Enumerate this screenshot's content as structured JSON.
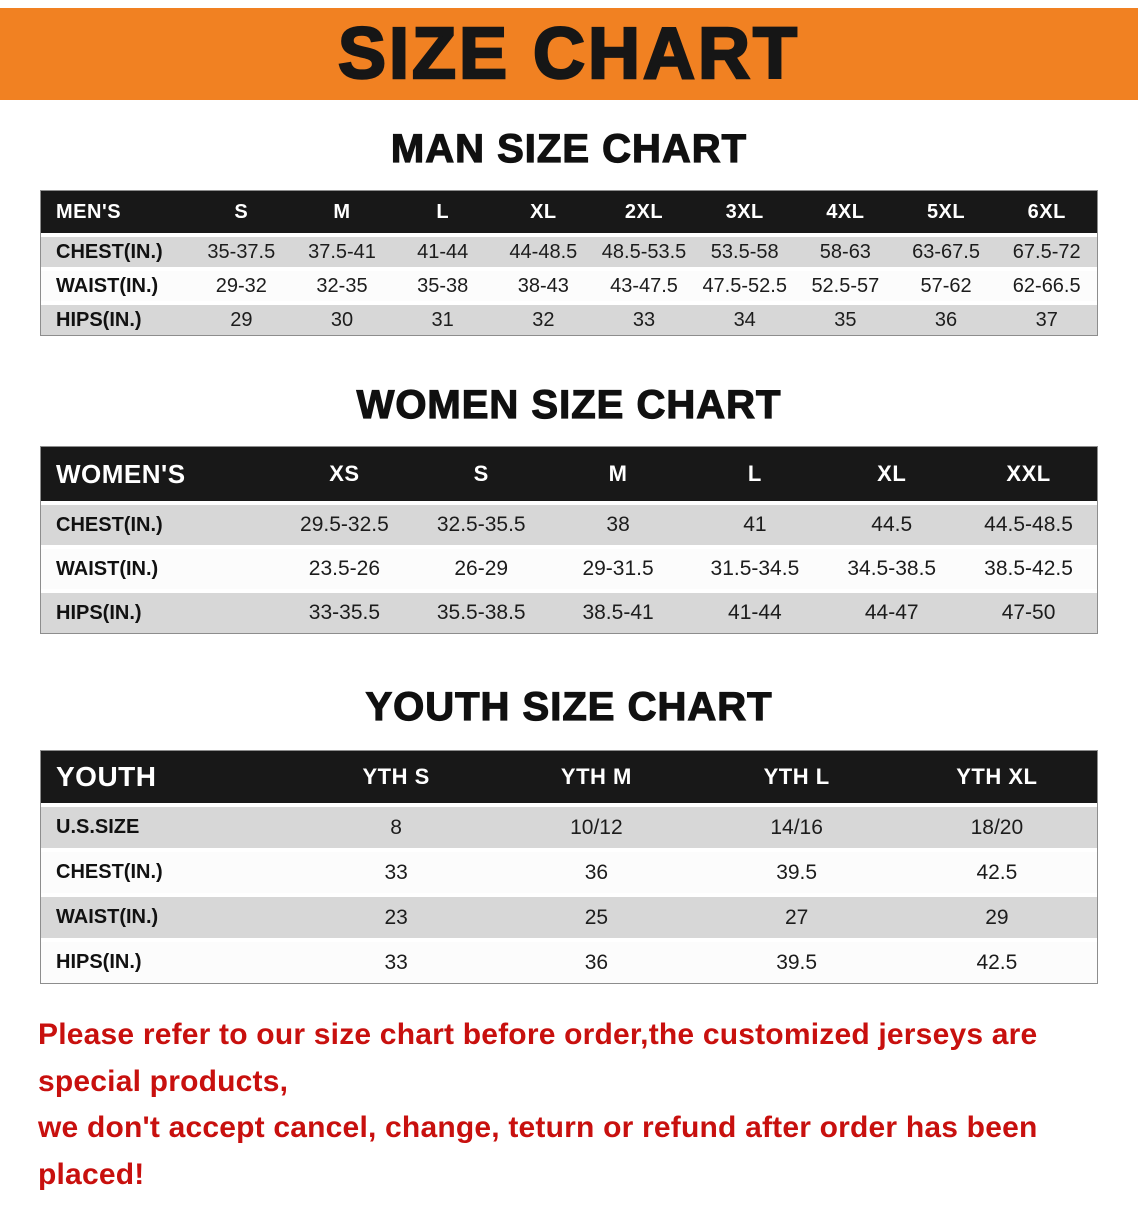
{
  "banner": {
    "title": "SIZE CHART"
  },
  "colors": {
    "banner-bg": "#f18122",
    "header-bg": "#181818",
    "row-alt": "#d7d7d7",
    "note-red": "#c8100e"
  },
  "sections": [
    {
      "id": "men",
      "heading": "MAN SIZE CHART",
      "header": [
        "MEN'S",
        "S",
        "M",
        "L",
        "XL",
        "2XL",
        "3XL",
        "4XL",
        "5XL",
        "6XL"
      ],
      "rows": [
        {
          "label": "CHEST(IN.)",
          "values": [
            "35-37.5",
            "37.5-41",
            "41-44",
            "44-48.5",
            "48.5-53.5",
            "53.5-58",
            "58-63",
            "63-67.5",
            "67.5-72"
          ]
        },
        {
          "label": "WAIST(IN.)",
          "values": [
            "29-32",
            "32-35",
            "35-38",
            "38-43",
            "43-47.5",
            "47.5-52.5",
            "52.5-57",
            "57-62",
            "62-66.5"
          ]
        },
        {
          "label": "HIPS(IN.)",
          "values": [
            "29",
            "30",
            "31",
            "32",
            "33",
            "34",
            "35",
            "36",
            "37"
          ]
        }
      ]
    },
    {
      "id": "women",
      "heading": "WOMEN SIZE CHART",
      "header": [
        "WOMEN'S",
        "XS",
        "S",
        "M",
        "L",
        "XL",
        "XXL"
      ],
      "rows": [
        {
          "label": "CHEST(IN.)",
          "values": [
            "29.5-32.5",
            "32.5-35.5",
            "38",
            "41",
            "44.5",
            "44.5-48.5"
          ]
        },
        {
          "label": "WAIST(IN.)",
          "values": [
            "23.5-26",
            "26-29",
            "29-31.5",
            "31.5-34.5",
            "34.5-38.5",
            "38.5-42.5"
          ]
        },
        {
          "label": "HIPS(IN.)",
          "values": [
            "33-35.5",
            "35.5-38.5",
            "38.5-41",
            "41-44",
            "44-47",
            "47-50"
          ]
        }
      ]
    },
    {
      "id": "youth",
      "heading": "YOUTH SIZE CHART",
      "header": [
        "YOUTH",
        "YTH S",
        "YTH M",
        "YTH L",
        "YTH XL"
      ],
      "rows": [
        {
          "label": "U.S.SIZE",
          "values": [
            "8",
            "10/12",
            "14/16",
            "18/20"
          ]
        },
        {
          "label": "CHEST(IN.)",
          "values": [
            "33",
            "36",
            "39.5",
            "42.5"
          ]
        },
        {
          "label": "WAIST(IN.)",
          "values": [
            "23",
            "25",
            "27",
            "29"
          ]
        },
        {
          "label": "HIPS(IN.)",
          "values": [
            "33",
            "36",
            "39.5",
            "42.5"
          ]
        }
      ]
    }
  ],
  "footer": {
    "lines": [
      "Please refer to our size chart before order,the customized jerseys are special products,",
      "we don't accept cancel, change, teturn or refund after order has been placed!"
    ]
  }
}
